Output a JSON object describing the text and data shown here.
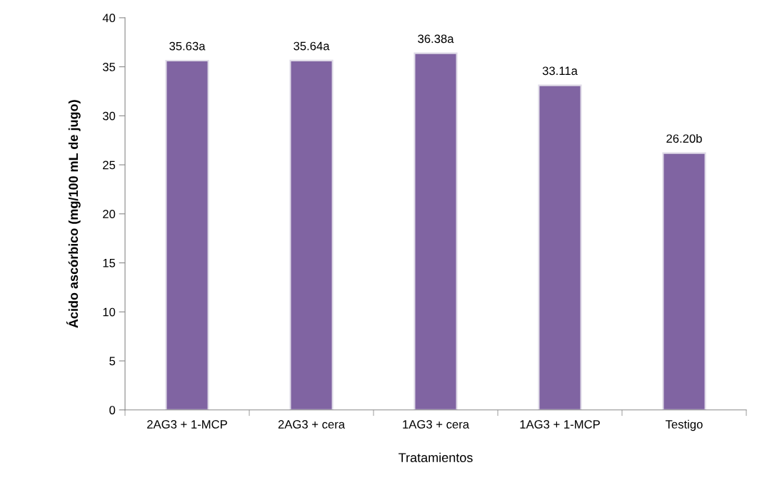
{
  "chart_data": {
    "type": "bar",
    "xlabel": "Tratamientos",
    "ylabel": "Ácido ascórbico (mg/100 mL de jugo)",
    "categories": [
      "2AG3 + 1-MCP",
      "2AG3 + cera",
      "1AG3 + cera",
      "1AG3 + 1-MCP",
      "Testigo"
    ],
    "values": [
      35.63,
      35.64,
      36.38,
      33.11,
      26.2
    ],
    "value_labels": [
      "35.63a",
      "35.64a",
      "36.38a",
      "33.11a",
      "26.20b"
    ],
    "color": "#8064a2",
    "ylim": [
      0,
      40
    ],
    "yticks": [
      0,
      5,
      10,
      15,
      20,
      25,
      30,
      35,
      40
    ],
    "grid": false,
    "legend": false
  }
}
